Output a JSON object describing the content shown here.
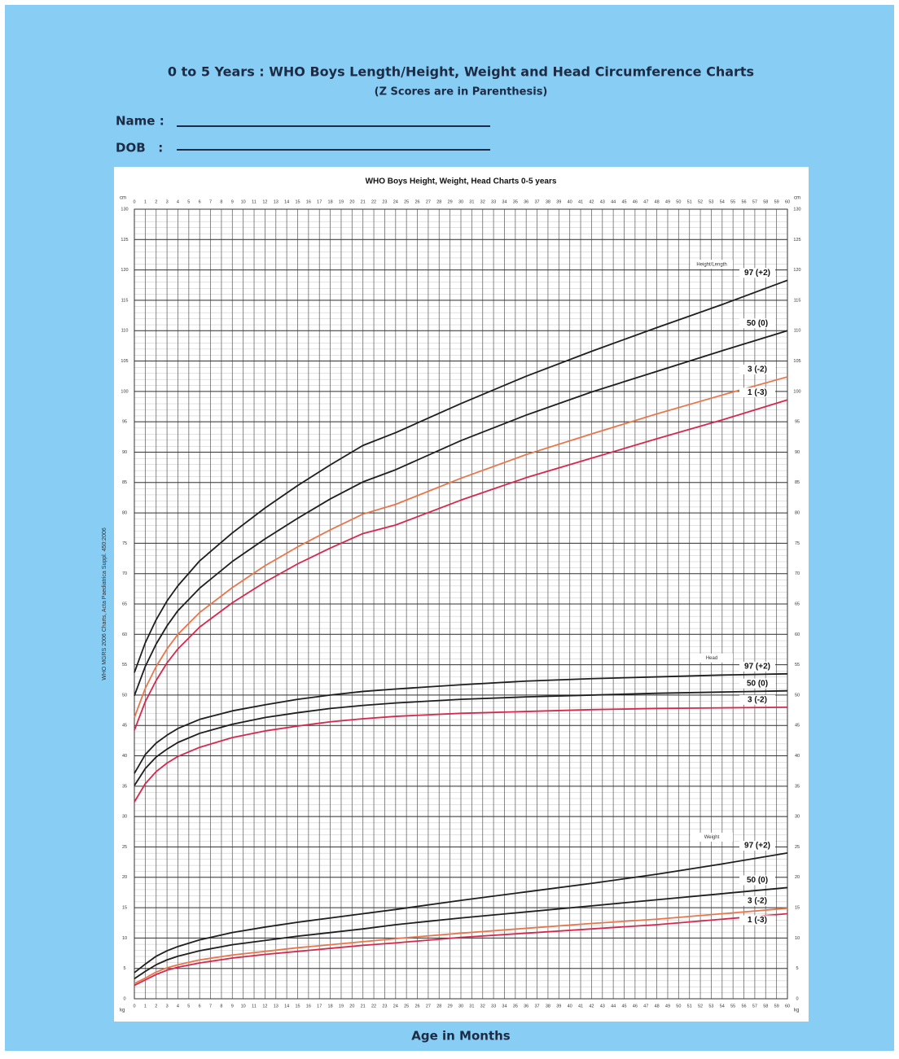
{
  "header": {
    "title": "0 to 5 Years : WHO Boys Length/Height, Weight and Head Circumference Charts",
    "subtitle": "(Z Scores are in Parenthesis)",
    "fields": [
      "Name :",
      "DOB   :"
    ]
  },
  "chart_data": {
    "type": "line",
    "title": "WHO Boys Height, Weight, Head Charts 0-5 years",
    "x_label": "Age in Months",
    "source": "WHO MGRS 2006 Charts, Acta Paediatrica Suppl. 450:2006",
    "units": {
      "top": "cm",
      "bottom": "kg"
    },
    "grid": true,
    "xlim": [
      0,
      60
    ],
    "ylim": [
      0,
      130
    ],
    "xticks": [
      0,
      1,
      2,
      3,
      4,
      5,
      6,
      7,
      8,
      9,
      10,
      11,
      12,
      13,
      14,
      15,
      16,
      17,
      18,
      19,
      20,
      21,
      22,
      23,
      24,
      25,
      26,
      27,
      28,
      29,
      30,
      31,
      32,
      33,
      34,
      35,
      36,
      37,
      38,
      39,
      40,
      41,
      42,
      43,
      44,
      45,
      46,
      47,
      48,
      49,
      50,
      51,
      52,
      53,
      54,
      55,
      56,
      57,
      58,
      59,
      60
    ],
    "yticks": [
      0,
      5,
      10,
      15,
      20,
      25,
      30,
      35,
      40,
      45,
      50,
      55,
      60,
      65,
      70,
      75,
      80,
      85,
      90,
      95,
      100,
      105,
      110,
      115,
      120,
      125,
      130
    ],
    "x": [
      0,
      1,
      2,
      3,
      4,
      6,
      9,
      12,
      15,
      18,
      21,
      24,
      30,
      36,
      42,
      48,
      54,
      60
    ],
    "groups": [
      {
        "name": "Height/Length",
        "series": [
          {
            "name": "97 (+2)",
            "color": "#1e1e1e",
            "values": [
              53.7,
              58.6,
              62.4,
              65.5,
              68.0,
              72.1,
              76.7,
              80.8,
              84.5,
              87.9,
              91.1,
              93.2,
              98.0,
              102.5,
              106.6,
              110.5,
              114.3,
              118.3
            ]
          },
          {
            "name": "50 (0)",
            "color": "#1e1e1e",
            "values": [
              49.9,
              54.7,
              58.4,
              61.4,
              63.9,
              67.6,
              72.0,
              75.7,
              79.1,
              82.3,
              85.1,
              87.1,
              91.9,
              96.1,
              99.9,
              103.3,
              106.7,
              110.0
            ]
          },
          {
            "name": "3 (-2)",
            "color": "#e8764c",
            "values": [
              46.3,
              51.1,
              54.7,
              57.6,
              60.0,
              63.6,
              67.7,
              71.3,
              74.4,
              77.2,
              79.8,
              81.4,
              85.7,
              89.6,
              93.0,
              96.3,
              99.4,
              102.4
            ]
          },
          {
            "name": "1 (-3)",
            "color": "#d6284c",
            "values": [
              44.2,
              48.9,
              52.4,
              55.3,
              57.6,
              61.2,
              65.2,
              68.6,
              71.6,
              74.2,
              76.6,
              78.0,
              82.1,
              85.8,
              89.0,
              92.2,
              95.3,
              98.6
            ]
          }
        ]
      },
      {
        "name": "Head",
        "series": [
          {
            "name": "97 (+2)",
            "color": "#1e1e1e",
            "values": [
              37.1,
              40.2,
              42.1,
              43.4,
              44.5,
              46.0,
              47.4,
              48.4,
              49.3,
              50.0,
              50.6,
              51.0,
              51.7,
              52.3,
              52.7,
              53.0,
              53.3,
              53.5
            ]
          },
          {
            "name": "50 (0)",
            "color": "#1e1e1e",
            "values": [
              35.1,
              37.9,
              39.8,
              41.1,
              42.2,
              43.7,
              45.2,
              46.3,
              47.1,
              47.8,
              48.3,
              48.7,
              49.3,
              49.7,
              50.0,
              50.3,
              50.5,
              50.7
            ]
          },
          {
            "name": "3 (-2)",
            "color": "#d6284c",
            "values": [
              32.4,
              35.4,
              37.4,
              38.8,
              39.9,
              41.4,
              43.0,
              44.1,
              44.9,
              45.6,
              46.1,
              46.5,
              47.0,
              47.3,
              47.6,
              47.8,
              47.9,
              48.0
            ]
          }
        ]
      },
      {
        "name": "Weight",
        "series": [
          {
            "name": "97 (+2)",
            "color": "#1e1e1e",
            "values": [
              4.3,
              5.7,
              7.0,
              7.9,
              8.6,
              9.7,
              10.9,
              11.8,
              12.6,
              13.3,
              14.0,
              14.7,
              16.2,
              17.6,
              19.0,
              20.5,
              22.2,
              24.0
            ]
          },
          {
            "name": "50 (0)",
            "color": "#1e1e1e",
            "values": [
              3.3,
              4.5,
              5.6,
              6.4,
              7.0,
              7.9,
              8.9,
              9.6,
              10.3,
              10.9,
              11.5,
              12.2,
              13.3,
              14.3,
              15.3,
              16.3,
              17.3,
              18.3
            ]
          },
          {
            "name": "3 (-2)",
            "color": "#e8764c",
            "values": [
              2.5,
              3.4,
              4.4,
              5.1,
              5.6,
              6.4,
              7.2,
              7.8,
              8.4,
              8.9,
              9.4,
              9.9,
              10.8,
              11.6,
              12.4,
              13.1,
              14.0,
              14.9
            ]
          },
          {
            "name": "1 (-3)",
            "color": "#d6284c",
            "values": [
              2.2,
              3.1,
              4.0,
              4.7,
              5.2,
              5.9,
              6.7,
              7.3,
              7.8,
              8.3,
              8.8,
              9.2,
              10.1,
              10.8,
              11.5,
              12.2,
              13.1,
              14.0
            ]
          }
        ]
      }
    ]
  }
}
